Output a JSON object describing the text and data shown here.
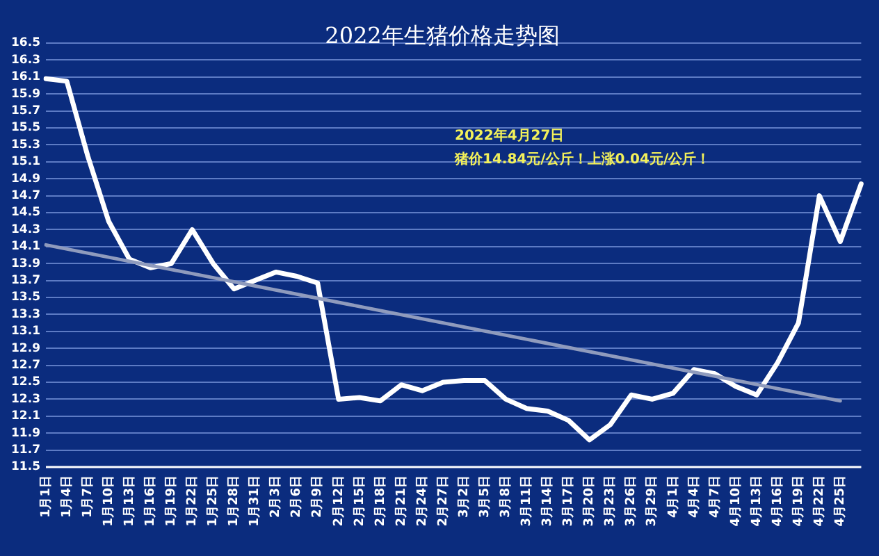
{
  "chart_data": {
    "type": "line",
    "title": "2022年生猪价格走势图",
    "categories": [
      "1月1日",
      "1月4日",
      "1月7日",
      "1月10日",
      "1月13日",
      "1月16日",
      "1月19日",
      "1月22日",
      "1月25日",
      "1月28日",
      "1月31日",
      "2月3日",
      "2月6日",
      "2月9日",
      "2月12日",
      "2月15日",
      "2月18日",
      "2月21日",
      "2月24日",
      "2月27日",
      "3月2日",
      "3月5日",
      "3月8日",
      "3月11日",
      "3月14日",
      "3月17日",
      "3月20日",
      "3月23日",
      "3月26日",
      "3月29日",
      "4月1日",
      "4月4日",
      "4月7日",
      "4月10日",
      "4月13日",
      "4月16日",
      "4月19日",
      "4月22日",
      "4月25日",
      null
    ],
    "series": [
      {
        "color": "#ffffff",
        "values": [
          16.08,
          16.05,
          15.17,
          14.4,
          13.95,
          13.85,
          13.9,
          14.3,
          13.9,
          13.6,
          13.7,
          13.8,
          13.75,
          13.67,
          12.3,
          12.32,
          12.28,
          12.47,
          12.4,
          12.5,
          12.52,
          12.52,
          12.3,
          12.19,
          12.16,
          12.05,
          11.82,
          12.0,
          12.35,
          12.3,
          12.37,
          12.65,
          12.6,
          12.45,
          12.35,
          12.73,
          13.2,
          14.7,
          14.16,
          14.84
        ]
      },
      {
        "color": "#8f9bbd",
        "x": [
          "1月1日",
          "4月25日"
        ],
        "values": [
          14.12,
          12.28
        ]
      }
    ],
    "ylim": [
      11.5,
      16.5
    ],
    "yticks": [
      11.5,
      11.7,
      11.9,
      12.1,
      12.3,
      12.5,
      12.7,
      12.9,
      13.1,
      13.3,
      13.5,
      13.7,
      13.9,
      14.1,
      14.3,
      14.5,
      14.7,
      14.9,
      15.1,
      15.3,
      15.5,
      15.7,
      15.9,
      16.1,
      16.3,
      16.5
    ],
    "grid": "y",
    "legend": false,
    "marker": "none",
    "line_style": "solid",
    "annotations": [
      "2022年4月27日",
      "猪价14.84元/公斤！上涨0.04元/公斤！"
    ]
  }
}
